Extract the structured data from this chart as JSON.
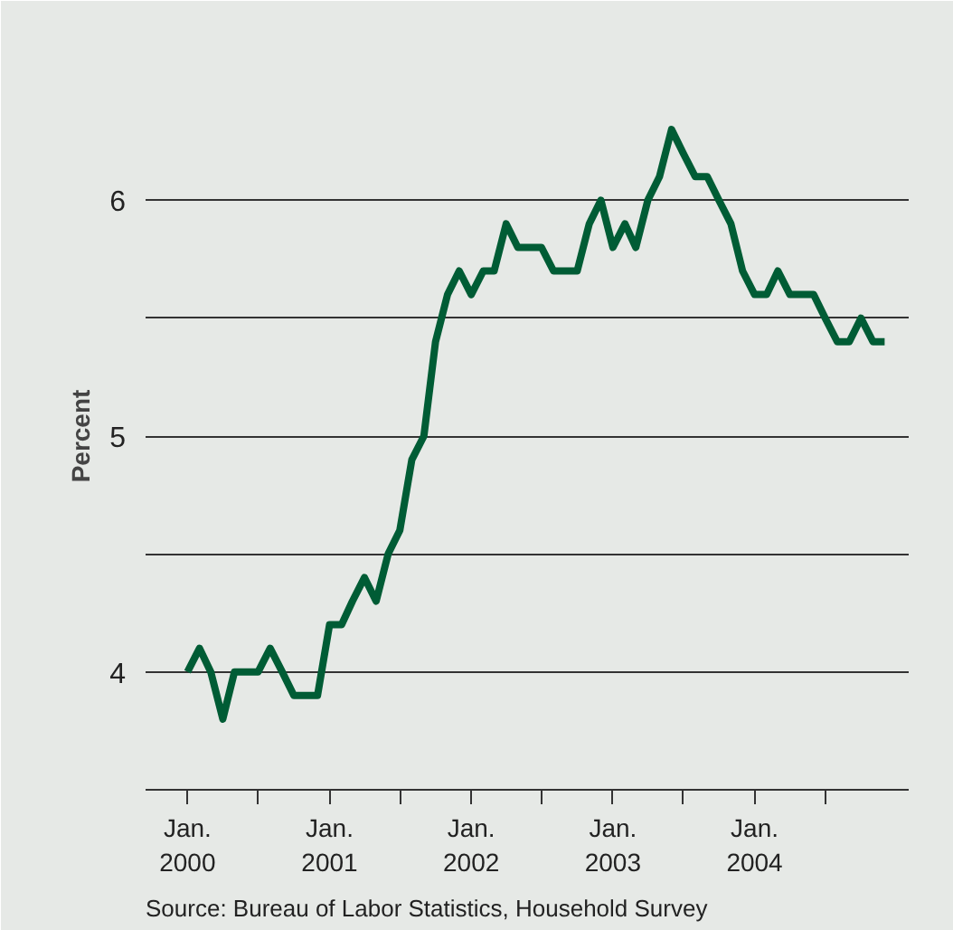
{
  "chart_data": {
    "type": "line",
    "ylabel": "Percent",
    "x": [
      "2000-01",
      "2000-02",
      "2000-03",
      "2000-04",
      "2000-05",
      "2000-06",
      "2000-07",
      "2000-08",
      "2000-09",
      "2000-10",
      "2000-11",
      "2000-12",
      "2001-01",
      "2001-02",
      "2001-03",
      "2001-04",
      "2001-05",
      "2001-06",
      "2001-07",
      "2001-08",
      "2001-09",
      "2001-10",
      "2001-11",
      "2001-12",
      "2002-01",
      "2002-02",
      "2002-03",
      "2002-04",
      "2002-05",
      "2002-06",
      "2002-07",
      "2002-08",
      "2002-09",
      "2002-10",
      "2002-11",
      "2002-12",
      "2003-01",
      "2003-02",
      "2003-03",
      "2003-04",
      "2003-05",
      "2003-06",
      "2003-07",
      "2003-08",
      "2003-09",
      "2003-10",
      "2003-11",
      "2003-12",
      "2004-01",
      "2004-02",
      "2004-03",
      "2004-04",
      "2004-05",
      "2004-06",
      "2004-07",
      "2004-08",
      "2004-09",
      "2004-10",
      "2004-11",
      "2004-12"
    ],
    "series": [
      {
        "color": "#005c35",
        "values": [
          4.0,
          4.1,
          4.0,
          3.8,
          4.0,
          4.0,
          4.0,
          4.1,
          4.0,
          3.9,
          3.9,
          3.9,
          4.2,
          4.2,
          4.3,
          4.4,
          4.3,
          4.5,
          4.6,
          4.9,
          5.0,
          5.4,
          5.6,
          5.7,
          5.6,
          5.7,
          5.7,
          5.9,
          5.8,
          5.8,
          5.8,
          5.7,
          5.7,
          5.7,
          5.9,
          6.0,
          5.8,
          5.9,
          5.8,
          6.0,
          6.1,
          6.3,
          6.2,
          6.1,
          6.1,
          6.0,
          5.9,
          5.7,
          5.6,
          5.6,
          5.7,
          5.6,
          5.6,
          5.6,
          5.5,
          5.4,
          5.4,
          5.5,
          5.4,
          5.4
        ]
      }
    ],
    "xlim": [
      "1999-09-15",
      "2005-02-01"
    ],
    "xticks": [
      {
        "value": "2000-01",
        "label": "Jan.\n2000"
      },
      {
        "value": "2000-07",
        "label": null
      },
      {
        "value": "2001-01",
        "label": "Jan.\n2001"
      },
      {
        "value": "2001-07",
        "label": null
      },
      {
        "value": "2002-01",
        "label": "Jan.\n2002"
      },
      {
        "value": "2002-07",
        "label": null
      },
      {
        "value": "2003-01",
        "label": "Jan.\n2003"
      },
      {
        "value": "2003-07",
        "label": null
      },
      {
        "value": "2004-01",
        "label": "Jan.\n2004"
      },
      {
        "value": "2004-07",
        "label": null
      }
    ],
    "ylim": [
      3.5,
      6.5
    ],
    "yticks": [
      4,
      {
        "value": 4.5,
        "label": null
      },
      5,
      {
        "value": 5.5,
        "label": null
      },
      6,
      {
        "value": 6.5,
        "label": null
      }
    ],
    "grid": "y",
    "line_style": "solid",
    "annotations": [
      "Source: Bureau of Labor Statistics, Household Survey"
    ]
  }
}
